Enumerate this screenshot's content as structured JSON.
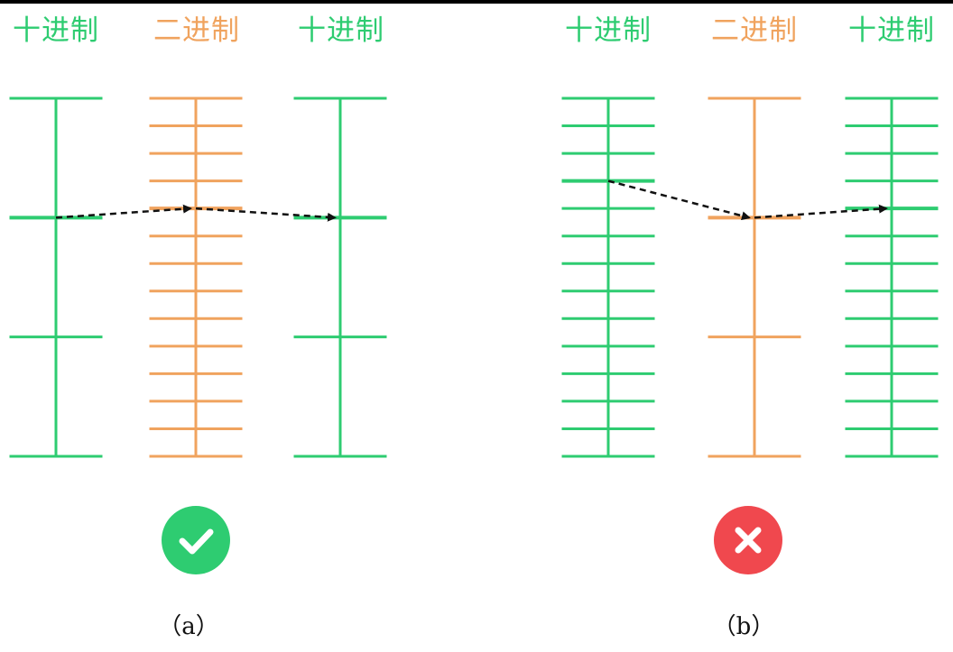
{
  "colors": {
    "decimal": "#2ecc71",
    "binary": "#f0a35e",
    "arrow": "#111111",
    "ok_badge": "#2ecc71",
    "bad_badge": "#f0484e",
    "badge_glyph": "#ffffff"
  },
  "panels": [
    {
      "caption": "（a）",
      "verdict": "correct",
      "verdict_icon": "check-icon",
      "columns": [
        {
          "label": "十进制",
          "kind": "decimal",
          "divisions": 3,
          "highlight_tick": 1
        },
        {
          "label": "二进制",
          "kind": "binary",
          "divisions": 13,
          "highlight_tick": 4
        },
        {
          "label": "十进制",
          "kind": "decimal",
          "divisions": 3,
          "highlight_tick": 1
        }
      ]
    },
    {
      "caption": "（b）",
      "verdict": "wrong",
      "verdict_icon": "cross-icon",
      "columns": [
        {
          "label": "十进制",
          "kind": "decimal",
          "divisions": 13,
          "highlight_tick": 3
        },
        {
          "label": "二进制",
          "kind": "binary",
          "divisions": 3,
          "highlight_tick": 1
        },
        {
          "label": "十进制",
          "kind": "decimal",
          "divisions": 13,
          "highlight_tick": 4
        }
      ]
    }
  ]
}
